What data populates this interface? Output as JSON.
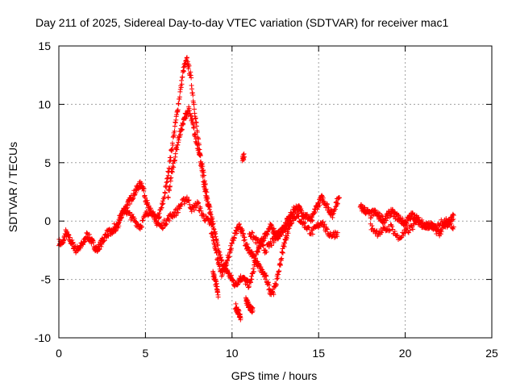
{
  "chart_data": {
    "type": "scatter",
    "title": "Day 211 of 2025, Sidereal Day-to-day VTEC variation (SDTVAR) for receiver mac1",
    "xlabel": "GPS time / hours",
    "ylabel": "SDTVAR / TECUs",
    "xlim": [
      0,
      25
    ],
    "ylim": [
      -10,
      15
    ],
    "xticks": [
      0,
      5,
      10,
      15,
      20,
      25
    ],
    "yticks": [
      -10,
      -5,
      0,
      5,
      10,
      15
    ],
    "grid": true,
    "marker": "+",
    "series": [
      {
        "name": "SDTVAR",
        "color": "#ff0000",
        "segments": [
          {
            "x": [
              0.0,
              0.2,
              0.4,
              0.6,
              0.8,
              1.0,
              1.2,
              1.4,
              1.6,
              1.8,
              2.0,
              2.2,
              2.4,
              2.6,
              2.8,
              3.0,
              3.2,
              3.4,
              3.6,
              3.8,
              4.0,
              4.2,
              4.4,
              4.6,
              4.8,
              5.0,
              5.2,
              5.4,
              5.6,
              5.8,
              6.0,
              6.2,
              6.4,
              6.6,
              6.8,
              7.0,
              7.2,
              7.4,
              7.6,
              7.8,
              8.0,
              8.2,
              8.4,
              8.6,
              8.8,
              9.0,
              9.2,
              9.4,
              9.6,
              9.8,
              10.0,
              10.2,
              10.4,
              10.6,
              10.8,
              11.0,
              11.2,
              11.4,
              11.6,
              11.8,
              12.0,
              12.2,
              12.4,
              12.6,
              12.8,
              13.0,
              13.2,
              13.4,
              13.6,
              13.8,
              14.0,
              14.2,
              14.4,
              14.6,
              14.8,
              15.0,
              15.2,
              15.4,
              15.6,
              15.8,
              16.0,
              16.2
            ],
            "y": [
              -1.8,
              -2.0,
              -1.0,
              -1.5,
              -2.0,
              -2.5,
              -2.2,
              -2.0,
              -1.2,
              -1.5,
              -2.0,
              -2.5,
              -2.0,
              -1.5,
              -1.0,
              -1.0,
              -0.8,
              -0.5,
              0.5,
              1.0,
              1.5,
              2.0,
              2.5,
              3.0,
              3.2,
              2.0,
              1.0,
              0.5,
              0.0,
              0.5,
              1.5,
              3.0,
              5.0,
              7.0,
              9.0,
              11.0,
              13.0,
              13.8,
              12.5,
              10.0,
              7.5,
              5.0,
              3.0,
              1.5,
              0.5,
              -1.0,
              -2.5,
              -3.5,
              -4.0,
              -4.5,
              -5.0,
              -5.5,
              -5.0,
              -4.8,
              -5.2,
              -5.5,
              -4.5,
              -3.0,
              -2.0,
              -1.5,
              -1.0,
              -0.5,
              -0.8,
              -1.2,
              -1.0,
              -0.5,
              0.0,
              0.5,
              1.0,
              1.2,
              0.8,
              0.5,
              0.3,
              0.0,
              1.0,
              1.5,
              2.0,
              1.5,
              1.0,
              0.5,
              1.5,
              2.0
            ]
          },
          {
            "x": [
              3.2,
              3.5,
              3.8,
              4.1,
              4.4,
              4.7,
              5.0,
              5.3,
              5.6,
              5.9,
              6.2,
              6.5,
              6.8,
              7.1,
              7.4,
              7.7,
              8.0,
              8.3,
              8.6,
              8.9
            ],
            "y": [
              -0.5,
              0.2,
              1.0,
              0.5,
              0.0,
              -0.5,
              0.5,
              1.0,
              0.0,
              -0.5,
              0.0,
              0.5,
              0.8,
              1.5,
              2.0,
              1.0,
              1.5,
              0.5,
              0.0,
              -0.5
            ]
          },
          {
            "x": [
              6.3,
              6.5,
              6.7,
              6.9,
              7.1,
              7.3,
              7.5,
              7.7,
              7.9,
              8.1,
              8.3,
              8.5,
              8.7
            ],
            "y": [
              2.0,
              4.0,
              5.5,
              7.0,
              8.0,
              9.0,
              9.5,
              8.5,
              7.0,
              6.0,
              4.5,
              2.5,
              1.0
            ]
          },
          {
            "x": [
              8.8,
              9.0,
              9.2,
              9.4,
              9.6,
              9.8,
              10.0,
              10.2,
              10.4,
              10.6,
              10.8,
              11.0,
              11.2,
              11.4,
              11.6,
              11.8,
              12.0,
              12.2,
              12.4,
              12.6,
              12.8,
              13.0,
              13.2,
              13.4
            ],
            "y": [
              -1.0,
              -2.0,
              -3.5,
              -4.5,
              -4.0,
              -3.0,
              -2.0,
              -1.0,
              -0.5,
              -1.0,
              -2.0,
              -2.5,
              -3.0,
              -3.5,
              -4.0,
              -4.5,
              -5.0,
              -6.0,
              -6.0,
              -5.0,
              -3.5,
              -2.0,
              -1.0,
              0.0
            ]
          },
          {
            "x": [
              11.0,
              11.3,
              11.6,
              11.9,
              12.2,
              12.5,
              12.8,
              13.1,
              13.4,
              13.7,
              14.0,
              14.3,
              14.6,
              14.9,
              15.2,
              15.5,
              15.8,
              16.1
            ],
            "y": [
              -1.0,
              -1.5,
              -2.0,
              -2.5,
              -2.0,
              -1.5,
              -1.0,
              -0.5,
              0.0,
              0.5,
              0.0,
              -0.5,
              -1.0,
              -0.5,
              0.0,
              -1.0,
              -1.2,
              -1.0
            ]
          },
          {
            "x": [
              8.9,
              9.0,
              9.1,
              9.2
            ],
            "y": [
              -4.5,
              -5.0,
              -5.5,
              -6.5
            ]
          },
          {
            "x": [
              10.2,
              10.3,
              10.4,
              10.5
            ],
            "y": [
              -7.3,
              -7.6,
              -7.9,
              -8.3
            ]
          },
          {
            "x": [
              10.6,
              10.7
            ],
            "y": [
              5.3,
              5.5
            ]
          },
          {
            "x": [
              10.8,
              10.9,
              11.0,
              11.1,
              11.2
            ],
            "y": [
              -6.8,
              -7.1,
              -7.4,
              -7.5,
              -7.7
            ]
          },
          {
            "x": [
              17.4,
              17.6,
              17.8,
              18.0,
              18.2,
              18.4,
              18.6,
              18.8,
              19.0,
              19.2,
              19.4,
              19.6,
              19.8,
              20.0,
              20.2,
              20.4,
              20.6,
              20.8,
              21.0,
              21.2,
              21.4,
              21.6,
              21.8,
              22.0,
              22.2,
              22.4,
              22.6,
              22.8
            ],
            "y": [
              1.2,
              1.0,
              0.8,
              0.5,
              0.8,
              0.5,
              0.3,
              0.0,
              0.5,
              0.8,
              0.5,
              0.3,
              0.0,
              -0.2,
              0.2,
              0.5,
              0.3,
              0.0,
              -0.3,
              -0.5,
              -0.3,
              -0.5,
              -0.8,
              -1.0,
              -0.5,
              -0.3,
              0.0,
              0.5
            ]
          },
          {
            "x": [
              18.0,
              18.4,
              18.8,
              19.2,
              19.6,
              20.0,
              20.4,
              20.8,
              21.2,
              21.6,
              22.0,
              22.4,
              22.8
            ],
            "y": [
              -0.5,
              -1.0,
              -0.8,
              -0.5,
              -1.5,
              -1.0,
              -0.5,
              0.0,
              -0.3,
              -0.5,
              -0.2,
              0.0,
              -0.5
            ]
          }
        ]
      }
    ]
  }
}
